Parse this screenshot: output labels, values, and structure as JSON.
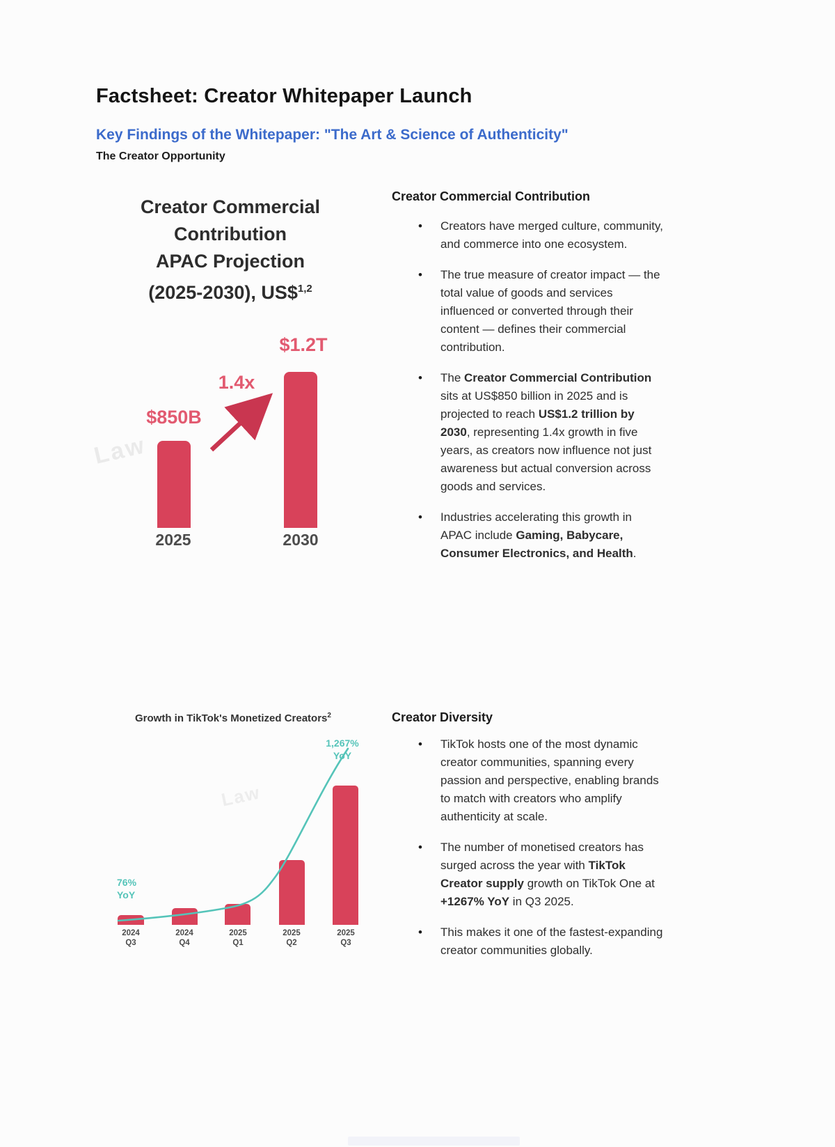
{
  "document": {
    "title": "Factsheet: Creator Whitepaper Launch",
    "key_findings_heading": "Key Findings of the Whitepaper: \"The Art & Science of Authenticity\"",
    "section_label": "The Creator Opportunity"
  },
  "chart_data": [
    {
      "type": "bar",
      "title": "Creator Commercial Contribution APAC Projection (2025-2030), US$",
      "title_lines": [
        "Creator Commercial",
        "Contribution",
        "APAC Projection",
        "(2025-2030), US$"
      ],
      "footnote_marker": "1,2",
      "categories": [
        "2025",
        "2030"
      ],
      "values": [
        850,
        1200
      ],
      "unit": "US$ billions",
      "bar_value_labels": [
        "$850B",
        "$1.2T"
      ],
      "growth_annotation": "1.4x",
      "bar_color": "#d8425a",
      "value_label_color": "#e25a70",
      "watermark": "Law",
      "axes_shown": false,
      "grid": false,
      "legend": "none",
      "bar_heights_rel": [
        0.56,
        1
      ]
    },
    {
      "type": "bar+line",
      "title": "Growth in TikTok's Monetized Creators",
      "footnote_marker": "2",
      "categories": [
        {
          "year": "2024",
          "quarter": "Q3"
        },
        {
          "year": "2024",
          "quarter": "Q4"
        },
        {
          "year": "2025",
          "quarter": "Q1"
        },
        {
          "year": "2025",
          "quarter": "Q2"
        },
        {
          "year": "2025",
          "quarter": "Q3"
        }
      ],
      "bars": {
        "name": "Monetized creators (relative heights; no value axis shown)",
        "values_rel": [
          0.07,
          0.12,
          0.15,
          0.465,
          1.0
        ],
        "color": "#d8425a"
      },
      "line": {
        "name": "YoY growth",
        "color": "#55c4b9",
        "start_label": {
          "value": "76%",
          "unit": "YoY"
        },
        "end_label": {
          "value": "1,267%",
          "unit": "YoY"
        }
      },
      "axes_shown": false,
      "grid": false,
      "legend": "none"
    }
  ],
  "sections": [
    {
      "heading": "Creator Commercial Contribution",
      "bullets": [
        [
          {
            "t": "Creators have merged culture, community, and commerce into one ecosystem.",
            "b": 0
          }
        ],
        [
          {
            "t": "The true measure of creator impact — the total value of goods and services influenced or converted through their content — defines their commercial contribution.",
            "b": 0
          }
        ],
        [
          {
            "t": "The ",
            "b": 0
          },
          {
            "t": "Creator Commercial Contribution",
            "b": 1
          },
          {
            "t": " sits at US$850 billion in 2025 and is projected to reach ",
            "b": 0
          },
          {
            "t": "US$1.2 trillion by 2030",
            "b": 1
          },
          {
            "t": ", representing 1.4x growth in five years, as creators now influence not just awareness but actual conversion across goods and services.",
            "b": 0
          }
        ],
        [
          {
            "t": "Industries accelerating this growth in APAC include ",
            "b": 0
          },
          {
            "t": "Gaming, Babycare, Consumer Electronics, and Health",
            "b": 1
          },
          {
            "t": ".",
            "b": 0
          }
        ]
      ]
    },
    {
      "heading": "Creator Diversity",
      "bullets": [
        [
          {
            "t": "TikTok hosts one of the most dynamic creator communities, spanning every passion and perspective, enabling brands to match with creators who amplify authenticity at scale.",
            "b": 0
          }
        ],
        [
          {
            "t": "The number of monetised creators has surged across the year with ",
            "b": 0
          },
          {
            "t": "TikTok Creator supply",
            "b": 1
          },
          {
            "t": " growth on TikTok One at ",
            "b": 0
          },
          {
            "t": "+1267% YoY",
            "b": 1
          },
          {
            "t": " in Q3 2025.",
            "b": 0
          }
        ],
        [
          {
            "t": "This makes it one of the fastest-expanding creator communities globally.",
            "b": 0
          }
        ]
      ]
    }
  ],
  "colors": {
    "heading_blue": "#3c6bcb",
    "bar_red": "#d8425a",
    "value_label_pink": "#e25a70",
    "teal": "#55c4b9",
    "body_text": "#2e2e2e"
  }
}
